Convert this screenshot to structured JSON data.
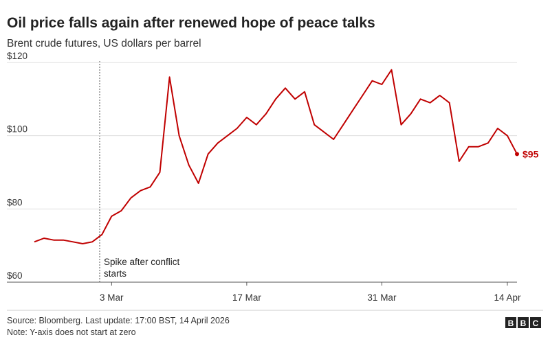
{
  "chart_data": {
    "type": "line",
    "title": "Oil price falls again after renewed hope of peace talks",
    "subtitle": "Brent crude futures, US dollars per barrel",
    "annotation": "Spike after conflict starts",
    "source": "Source: Bloomberg. Last update: 17:00 BST, 14 April 2026",
    "note": "Note: Y-axis does not start at zero",
    "logo": [
      "B",
      "B",
      "C"
    ],
    "categories": [
      null,
      null,
      null,
      null,
      null,
      null,
      null,
      null,
      "3 Mar",
      null,
      null,
      null,
      null,
      null,
      null,
      null,
      null,
      null,
      null,
      null,
      null,
      null,
      "17 Mar",
      null,
      null,
      null,
      null,
      null,
      null,
      null,
      null,
      null,
      null,
      null,
      null,
      null,
      "31 Mar",
      null,
      null,
      null,
      null,
      null,
      null,
      null,
      null,
      null,
      null,
      null,
      null,
      "14 Apr",
      null
    ],
    "series": [
      {
        "name": "Brent crude",
        "color": "#c00000",
        "values": [
          71,
          72,
          71.5,
          71.5,
          71,
          70.5,
          71,
          73,
          78,
          79.5,
          83,
          85,
          86,
          90,
          116,
          100,
          92,
          87,
          95,
          98,
          100,
          102,
          105,
          103,
          106,
          110,
          113,
          110,
          112,
          103,
          101,
          99,
          103,
          107,
          111,
          115,
          114,
          118,
          103,
          106,
          110,
          109,
          111,
          109,
          93,
          97,
          97,
          98,
          102,
          100,
          95
        ],
        "value_labels": [
          null,
          null,
          null,
          null,
          null,
          null,
          null,
          null,
          null,
          null,
          null,
          null,
          null,
          null,
          null,
          null,
          null,
          null,
          null,
          null,
          null,
          null,
          null,
          null,
          null,
          null,
          null,
          null,
          null,
          null,
          null,
          null,
          null,
          null,
          null,
          null,
          null,
          null,
          null,
          null,
          null,
          null,
          null,
          null,
          null,
          null,
          null,
          null,
          null,
          null,
          "$95"
        ]
      }
    ],
    "ylim": [
      60,
      120
    ],
    "yticks": [
      {
        "value": 60,
        "label": "$60"
      },
      {
        "value": 80,
        "label": "$80"
      },
      {
        "value": 100,
        "label": "$100"
      },
      {
        "value": 120,
        "label": "$120"
      }
    ],
    "grid": true
  }
}
